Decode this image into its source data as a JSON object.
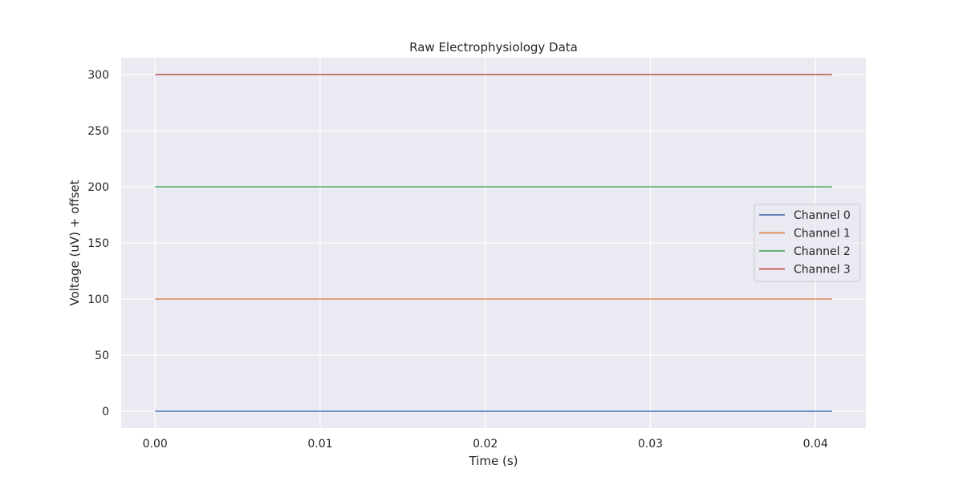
{
  "chart_data": {
    "type": "line",
    "title": "Raw Electrophysiology Data",
    "xlabel": "Time (s)",
    "ylabel": "Voltage (uV) + offset",
    "xlim": [
      -0.00205,
      0.04305
    ],
    "ylim": [
      -15,
      315
    ],
    "x_ticks": [
      0.0,
      0.01,
      0.02,
      0.03,
      0.04
    ],
    "x_tick_labels": [
      "0.00",
      "0.01",
      "0.02",
      "0.03",
      "0.04"
    ],
    "y_ticks": [
      0,
      50,
      100,
      150,
      200,
      250,
      300
    ],
    "y_tick_labels": [
      "0",
      "50",
      "100",
      "150",
      "200",
      "250",
      "300"
    ],
    "grid": true,
    "legend_position": "center-right",
    "series": [
      {
        "name": "Channel 0",
        "color": "#4c72b0",
        "x": [
          0.0,
          0.041
        ],
        "values": [
          0,
          0
        ]
      },
      {
        "name": "Channel 1",
        "color": "#dd8452",
        "x": [
          0.0,
          0.041
        ],
        "values": [
          100,
          100
        ]
      },
      {
        "name": "Channel 2",
        "color": "#55a868",
        "x": [
          0.0,
          0.041
        ],
        "values": [
          200,
          200
        ]
      },
      {
        "name": "Channel 3",
        "color": "#c44e52",
        "x": [
          0.0,
          0.041
        ],
        "values": [
          300,
          300
        ]
      }
    ],
    "background_color": "#eaeaf2",
    "grid_color": "#ffffff"
  }
}
